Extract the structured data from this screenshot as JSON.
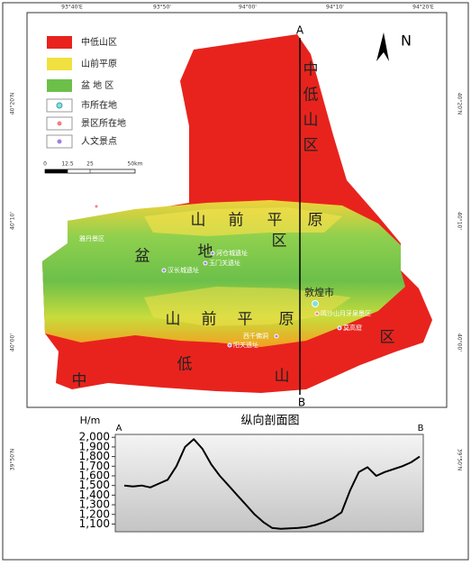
{
  "map": {
    "coords": {
      "top": [
        "93°40'E",
        "93°50'",
        "94°00'",
        "94°10'",
        "94°20'E"
      ],
      "left": [
        "40°20'N",
        "40°10'",
        "40°00'",
        "39°50'N"
      ],
      "right": [
        "40°20'N",
        "40°10'",
        "40°00'",
        "39°50'N"
      ]
    },
    "legend": [
      "中低山区",
      "山前平原",
      "盆 地 区",
      "市所在地",
      "景区所在地",
      "人文景点"
    ],
    "scale": [
      "0",
      "12.5",
      "25",
      "50km"
    ],
    "north": "N",
    "section": {
      "start": "A",
      "end": "B"
    },
    "zones": {
      "mountain_north": [
        "中",
        "低",
        "山",
        "区"
      ],
      "plain_north": [
        "山",
        "前",
        "平",
        "原",
        "区"
      ],
      "basin": [
        "盆",
        "地"
      ],
      "plain_south": [
        "山",
        "前",
        "平",
        "原"
      ],
      "mountain_south": [
        "中",
        "低",
        "山",
        "区"
      ]
    },
    "places": [
      "敦煌市",
      "雅丹景区",
      "河仓城遗址",
      "玉门关遗址",
      "汉长城遗址",
      "鸣沙山月牙泉景区",
      "莫高窟",
      "西千佛洞",
      "阳关遗址"
    ]
  },
  "chart_data": {
    "type": "line",
    "title": "纵向剖面图",
    "ylabel": "H/m",
    "start": "A",
    "end": "B",
    "color": "#000000",
    "values": [
      1500,
      1490,
      1500,
      1480,
      1520,
      1560,
      1700,
      1900,
      1980,
      1880,
      1720,
      1600,
      1500,
      1400,
      1300,
      1200,
      1120,
      1060,
      1050,
      1055,
      1060,
      1070,
      1090,
      1120,
      1160,
      1220,
      1450,
      1640,
      1690,
      1600,
      1640,
      1670,
      1700,
      1740,
      1800
    ],
    "ylim": [
      1020,
      2030
    ],
    "yticks": [
      {
        "value": 1100,
        "label": "1,100"
      },
      {
        "value": 1200,
        "label": "1,200"
      },
      {
        "value": 1300,
        "label": "1,300"
      },
      {
        "value": 1400,
        "label": "1,400"
      },
      {
        "value": 1500,
        "label": "1,500"
      },
      {
        "value": 1600,
        "label": "1,600"
      },
      {
        "value": 1700,
        "label": "1,700"
      },
      {
        "value": 1800,
        "label": "1,800"
      },
      {
        "value": 1900,
        "label": "1,900"
      },
      {
        "value": 2000,
        "label": "2,000"
      }
    ]
  }
}
